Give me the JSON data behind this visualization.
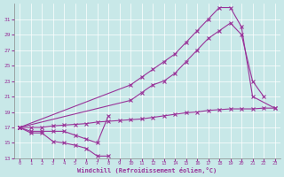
{
  "background_color": "#c8e8e8",
  "grid_color": "#ffffff",
  "line_color": "#993399",
  "xlabel": "Windchill (Refroidissement éolien,°C)",
  "xlim": [
    -0.5,
    23.5
  ],
  "ylim": [
    13,
    33
  ],
  "xticks": [
    0,
    1,
    2,
    3,
    4,
    5,
    6,
    7,
    8,
    9,
    10,
    11,
    12,
    13,
    14,
    15,
    16,
    17,
    18,
    19,
    20,
    21,
    22,
    23
  ],
  "yticks": [
    13,
    15,
    17,
    19,
    21,
    23,
    25,
    27,
    29,
    31
  ],
  "series": [
    {
      "x": [
        0,
        1,
        2,
        3,
        4,
        5,
        6,
        7,
        8
      ],
      "y": [
        17,
        16.3,
        16.3,
        15.2,
        15.0,
        14.7,
        14.3,
        13.3,
        13.3
      ]
    },
    {
      "x": [
        0,
        1,
        2,
        3,
        4,
        5,
        6,
        7,
        8
      ],
      "y": [
        17,
        16.5,
        16.5,
        16.5,
        16.5,
        16.0,
        15.5,
        15.0,
        18.5
      ]
    },
    {
      "x": [
        0,
        1,
        2,
        3,
        4,
        5,
        6,
        7,
        8,
        9,
        10,
        11,
        12,
        13,
        14,
        15,
        16,
        17,
        18,
        19,
        20,
        21,
        22,
        23
      ],
      "y": [
        17,
        17.0,
        17.0,
        17.2,
        17.3,
        17.4,
        17.5,
        17.7,
        17.8,
        17.9,
        18.0,
        18.1,
        18.3,
        18.5,
        18.7,
        18.9,
        19.0,
        19.2,
        19.3,
        19.4,
        19.4,
        19.4,
        19.5,
        19.5
      ]
    },
    {
      "x": [
        0,
        10,
        11,
        12,
        13,
        14,
        15,
        16,
        17,
        18,
        19,
        20,
        21,
        23
      ],
      "y": [
        17,
        22.5,
        23.5,
        24.5,
        25.5,
        26.5,
        28.0,
        29.5,
        31.0,
        32.5,
        32.5,
        30.0,
        21.0,
        19.5
      ]
    },
    {
      "x": [
        0,
        10,
        11,
        12,
        13,
        14,
        15,
        16,
        17,
        18,
        19,
        20,
        21,
        22
      ],
      "y": [
        17,
        20.5,
        21.5,
        22.5,
        23.0,
        24.0,
        25.5,
        27.0,
        28.5,
        29.5,
        30.5,
        29.0,
        23.0,
        21.0
      ]
    }
  ]
}
